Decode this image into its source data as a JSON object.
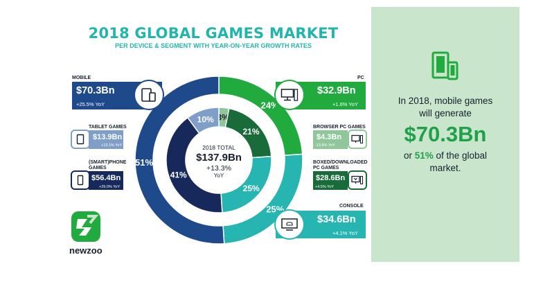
{
  "header": {
    "title": "2018 GLOBAL GAMES MARKET",
    "subtitle": "PER DEVICE & SEGMENT WITH YEAR-ON-YEAR GROWTH RATES"
  },
  "segments": {
    "mobile": {
      "label": "MOBILE",
      "value": "$70.3Bn",
      "yoy": "+25.5% YoY",
      "icon": "tablet-phone-icon"
    },
    "tablet": {
      "label": "TABLET GAMES",
      "value": "$13.9Bn",
      "yoy": "+13.1% YoY",
      "icon": "tablet-icon"
    },
    "smartphone": {
      "label_line1": "(SMART)PHONE",
      "label_line2": "GAMES",
      "value": "$56.4Bn",
      "yoy": "+29.0% YoY",
      "icon": "phone-icon"
    },
    "pc": {
      "label": "PC",
      "value": "$32.9Bn",
      "yoy": "+1.6% YoY",
      "icon": "desktop-icon"
    },
    "browser_pc": {
      "label": "BROWSER PC GAMES",
      "value": "$4.3Bn",
      "yoy": "-13.6% YoY",
      "icon": "browser-icon"
    },
    "boxed_pc": {
      "label_line1": "BOXED/DOWNLOADED",
      "label_line2": "PC GAMES",
      "value": "$28.6Bn",
      "yoy": "+4.5% YoY",
      "icon": "download-icon"
    },
    "console": {
      "label": "CONSOLE",
      "value": "$34.6Bn",
      "yoy": "+4.1% YoY",
      "icon": "console-icon"
    }
  },
  "center": {
    "label": "2018 TOTAL",
    "value": "$137.9Bn",
    "growth": "+13.3%",
    "growth_unit": "YoY"
  },
  "panel": {
    "line1": "In 2018, mobile games",
    "line2": "will generate",
    "big": "$70.3Bn",
    "line3_pre": "or ",
    "line3_pct": "51%",
    "line3_post": " of the global",
    "line4": "market."
  },
  "brand": {
    "name": "newzoo"
  },
  "colors": {
    "mobile": "#1e4a8c",
    "smartphone": "#16295a",
    "tablet": "#7f9fc8",
    "pc": "#21ab3f",
    "boxed_pc": "#1a6b3a",
    "browser_pc": "#8fc79b",
    "console": "#26b5b0",
    "accent": "#21b5ad",
    "panel": "#c9e6cd"
  },
  "chart_data": {
    "type": "pie",
    "title": "2018 GLOBAL GAMES MARKET",
    "subtitle": "PER DEVICE & SEGMENT WITH YEAR-ON-YEAR GROWTH RATES",
    "total": "$137.9Bn",
    "outer_ring": [
      {
        "name": "PC",
        "value": 32.9,
        "percent": 24,
        "yoy": "+1.6%"
      },
      {
        "name": "CONSOLE",
        "value": 34.6,
        "percent": 25,
        "yoy": "+4.1%"
      },
      {
        "name": "MOBILE",
        "value": 70.3,
        "percent": 51,
        "yoy": "+25.5%"
      }
    ],
    "inner_ring": [
      {
        "name": "BROWSER PC GAMES",
        "value": 4.3,
        "percent": 3,
        "yoy": "-13.6%"
      },
      {
        "name": "BOXED/DOWNLOADED PC GAMES",
        "value": 28.6,
        "percent": 21,
        "yoy": "+4.5%"
      },
      {
        "name": "CONSOLE",
        "value": 34.6,
        "percent": 25,
        "yoy": "+4.1%"
      },
      {
        "name": "(SMART)PHONE GAMES",
        "value": 56.4,
        "percent": 41,
        "yoy": "+29.0%"
      },
      {
        "name": "TABLET GAMES",
        "value": 13.9,
        "percent": 10,
        "yoy": "+13.1%"
      }
    ]
  }
}
